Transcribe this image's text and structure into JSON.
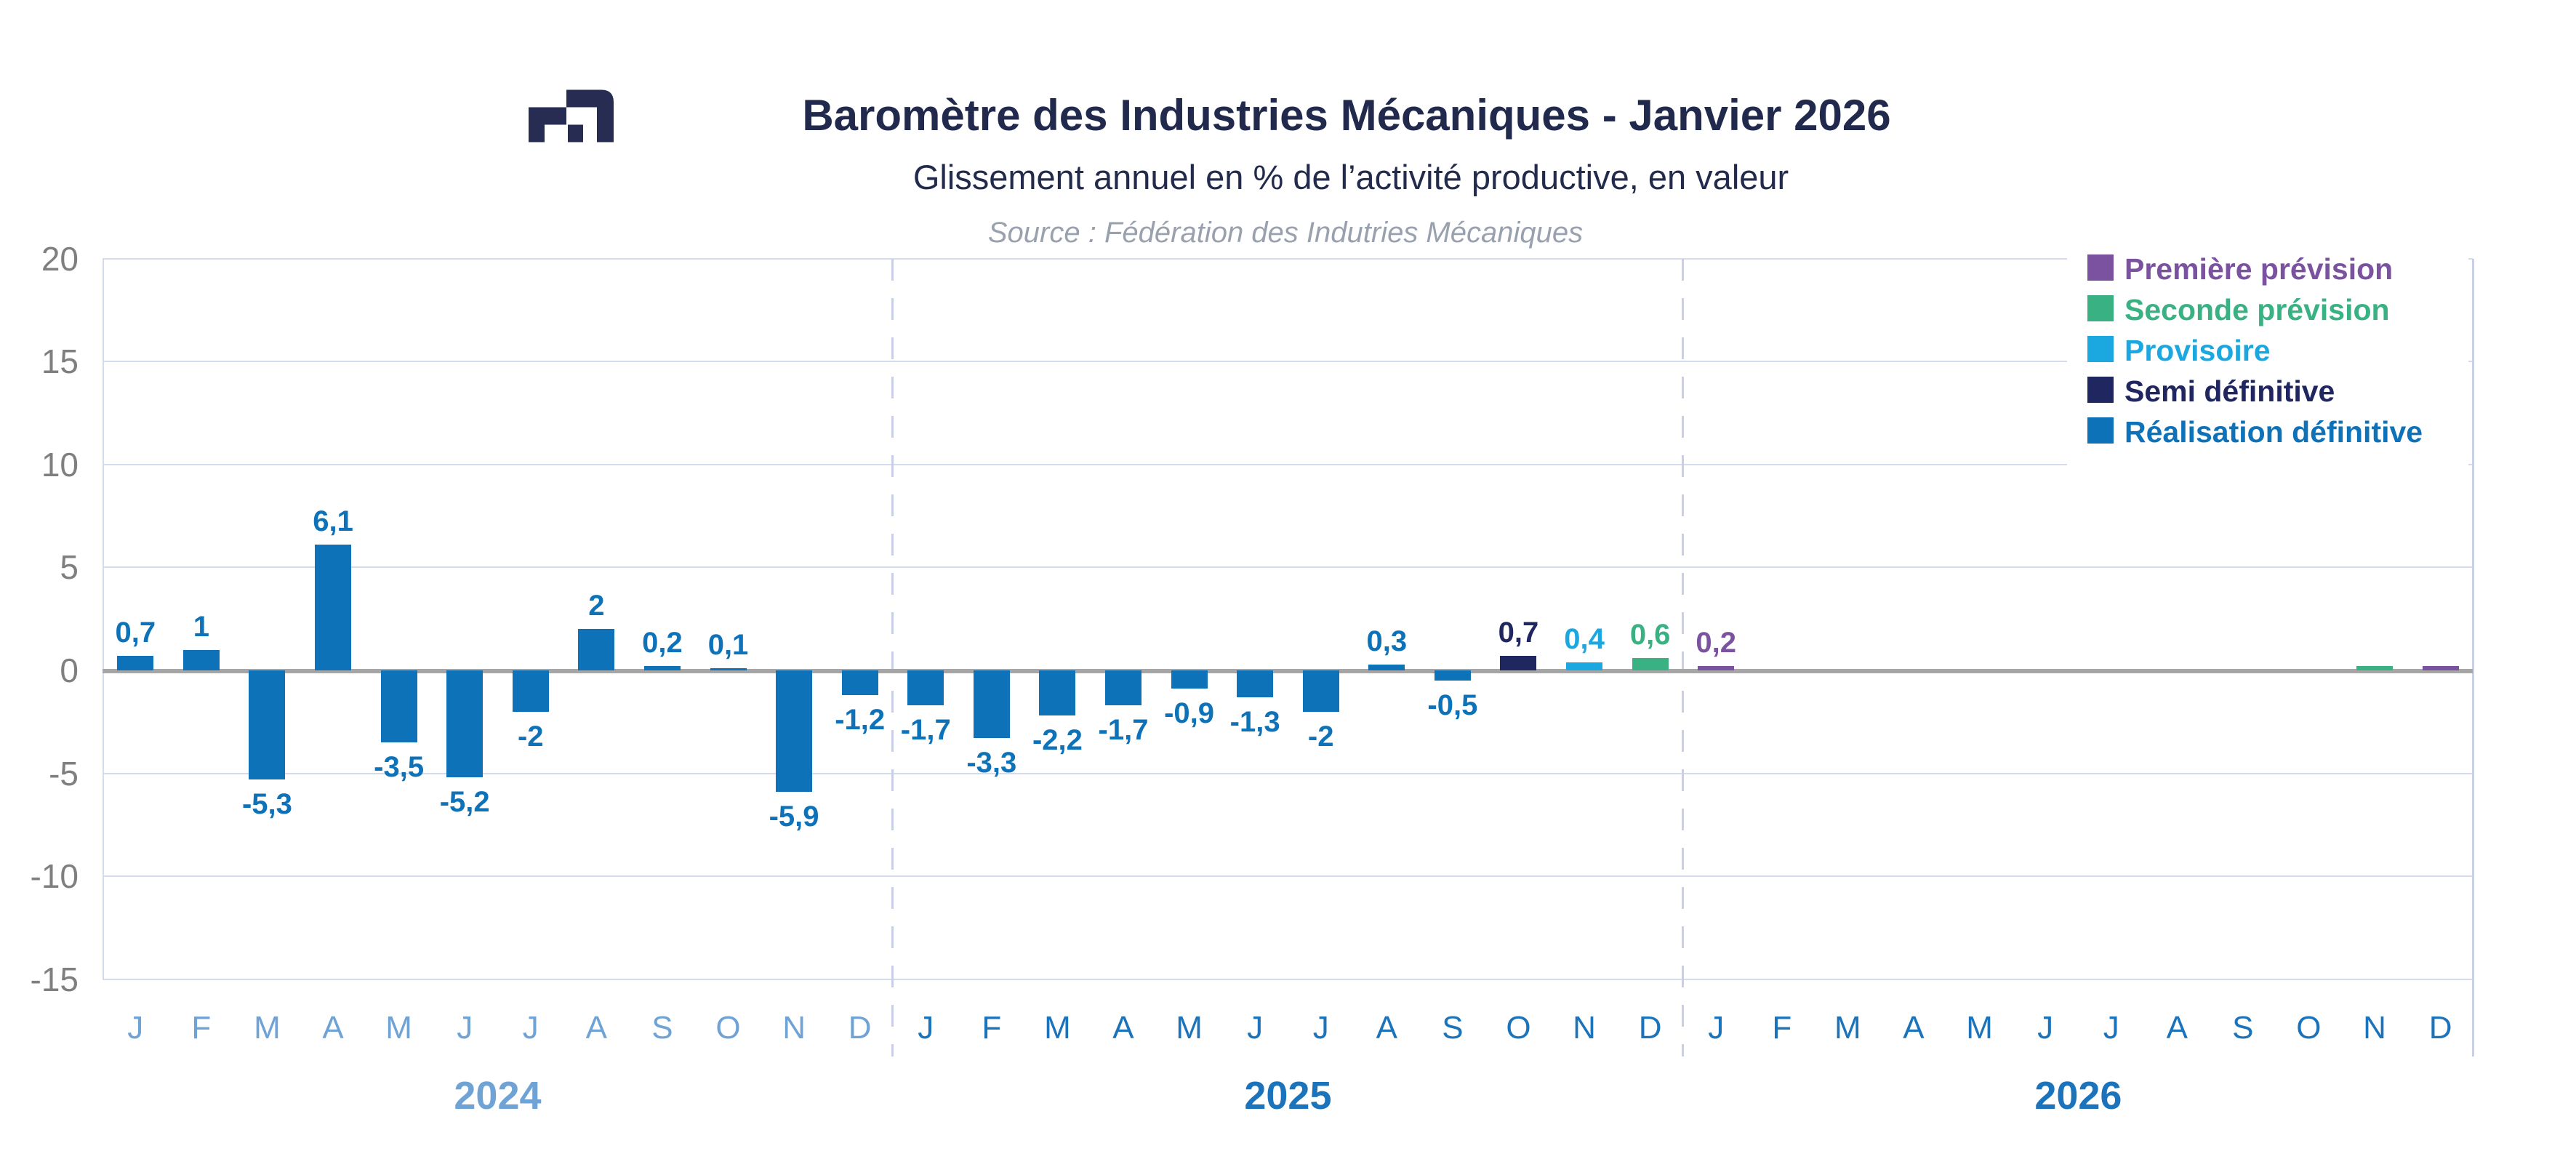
{
  "header": {
    "title": "Baromètre des Industries Mécaniques - Janvier 2026",
    "subtitle": "Glissement annuel en % de l’activité productive, en valeur",
    "source": "Source : Fédération des Indutries Mécaniques",
    "title_color": "#212A4C"
  },
  "logo": {
    "description": "fim-mark",
    "color": "#262C52"
  },
  "legend": {
    "items": [
      {
        "key": "premiere",
        "label": "Première prévision",
        "color": "#7B52A0"
      },
      {
        "key": "seconde",
        "label": "Seconde prévision",
        "color": "#3AB183"
      },
      {
        "key": "provisoire",
        "label": "Provisoire",
        "color": "#1BA8E0"
      },
      {
        "key": "semi",
        "label": "Semi définitive",
        "color": "#20265F"
      },
      {
        "key": "realisation",
        "label": "Réalisation définitive",
        "color": "#0E72B8"
      }
    ]
  },
  "chart_data": {
    "type": "bar",
    "title": "Baromètre des Industries Mécaniques - Janvier 2026",
    "subtitle": "Glissement annuel en % de l’activité productive, en valeur",
    "xlabel": "",
    "ylabel": "Glissement annuel en %",
    "ylim": [
      -15,
      20
    ],
    "grid_step": 5,
    "grid_on": true,
    "legend_position": "top-right-inside",
    "y_ticks": [
      20,
      15,
      10,
      5,
      0,
      -5,
      -10,
      -15
    ],
    "axis_color": "#A6A6A6",
    "gridline_color": "#D5DBEC",
    "separator_color": "#C9CFE6",
    "tick_label_color": "#7F7F7F",
    "years": [
      {
        "label": "2024",
        "color": "#6FA3D6",
        "month_color": "#6FA3D6"
      },
      {
        "label": "2025",
        "color": "#1B74BB",
        "month_color": "#1B74BB"
      },
      {
        "label": "2026",
        "color": "#1B74BB",
        "month_color": "#1B74BB"
      }
    ],
    "month_letters": [
      "J",
      "F",
      "M",
      "A",
      "M",
      "J",
      "J",
      "A",
      "S",
      "O",
      "N",
      "D"
    ],
    "points": [
      {
        "year": "2024",
        "month": "J",
        "value": 0.7,
        "label": "0,7",
        "series": "realisation"
      },
      {
        "year": "2024",
        "month": "F",
        "value": 1,
        "label": "1",
        "series": "realisation"
      },
      {
        "year": "2024",
        "month": "M",
        "value": -5.3,
        "label": "-5,3",
        "series": "realisation"
      },
      {
        "year": "2024",
        "month": "A",
        "value": 6.1,
        "label": "6,1",
        "series": "realisation"
      },
      {
        "year": "2024",
        "month": "M",
        "value": -3.5,
        "label": "-3,5",
        "series": "realisation"
      },
      {
        "year": "2024",
        "month": "J",
        "value": -5.2,
        "label": "-5,2",
        "series": "realisation"
      },
      {
        "year": "2024",
        "month": "J",
        "value": -2,
        "label": "-2",
        "series": "realisation"
      },
      {
        "year": "2024",
        "month": "A",
        "value": 2,
        "label": "2",
        "series": "realisation"
      },
      {
        "year": "2024",
        "month": "S",
        "value": 0.2,
        "label": "0,2",
        "series": "realisation"
      },
      {
        "year": "2024",
        "month": "O",
        "value": 0.1,
        "label": "0,1",
        "series": "realisation"
      },
      {
        "year": "2024",
        "month": "N",
        "value": -5.9,
        "label": "-5,9",
        "series": "realisation"
      },
      {
        "year": "2024",
        "month": "D",
        "value": -1.2,
        "label": "-1,2",
        "series": "realisation"
      },
      {
        "year": "2025",
        "month": "J",
        "value": -1.7,
        "label": "-1,7",
        "series": "realisation"
      },
      {
        "year": "2025",
        "month": "F",
        "value": -3.3,
        "label": "-3,3",
        "series": "realisation"
      },
      {
        "year": "2025",
        "month": "M",
        "value": -2.2,
        "label": "-2,2",
        "series": "realisation"
      },
      {
        "year": "2025",
        "month": "A",
        "value": -1.7,
        "label": "-1,7",
        "series": "realisation"
      },
      {
        "year": "2025",
        "month": "M",
        "value": -0.9,
        "label": "-0,9",
        "series": "realisation"
      },
      {
        "year": "2025",
        "month": "J",
        "value": -1.3,
        "label": "-1,3",
        "series": "realisation"
      },
      {
        "year": "2025",
        "month": "J",
        "value": -2,
        "label": "-2",
        "series": "realisation"
      },
      {
        "year": "2025",
        "month": "A",
        "value": 0.3,
        "label": "0,3",
        "series": "realisation"
      },
      {
        "year": "2025",
        "month": "S",
        "value": -0.5,
        "label": "-0,5",
        "series": "realisation"
      },
      {
        "year": "2025",
        "month": "O",
        "value": 0.7,
        "label": "0,7",
        "series": "semi"
      },
      {
        "year": "2025",
        "month": "N",
        "value": 0.4,
        "label": "0,4",
        "series": "provisoire"
      },
      {
        "year": "2025",
        "month": "D",
        "value": 0.6,
        "label": "0,6",
        "series": "seconde"
      },
      {
        "year": "2026",
        "month": "J",
        "value": 0.2,
        "label": "0,2",
        "series": "premiere"
      },
      {
        "year": "2026",
        "month": "F",
        "value": null,
        "label": "",
        "series": null
      },
      {
        "year": "2026",
        "month": "M",
        "value": null,
        "label": "",
        "series": null
      },
      {
        "year": "2026",
        "month": "A",
        "value": null,
        "label": "",
        "series": null
      },
      {
        "year": "2026",
        "month": "M",
        "value": null,
        "label": "",
        "series": null
      },
      {
        "year": "2026",
        "month": "J",
        "value": null,
        "label": "",
        "series": null
      },
      {
        "year": "2026",
        "month": "J",
        "value": null,
        "label": "",
        "series": null
      },
      {
        "year": "2026",
        "month": "A",
        "value": null,
        "label": "",
        "series": null
      },
      {
        "year": "2026",
        "month": "S",
        "value": null,
        "label": "",
        "series": null
      },
      {
        "year": "2026",
        "month": "O",
        "value": null,
        "label": "",
        "series": null
      },
      {
        "year": "2026",
        "month": "N",
        "value": 0,
        "label": "",
        "series": "seconde"
      },
      {
        "year": "2026",
        "month": "D",
        "value": 0,
        "label": "",
        "series": "premiere"
      }
    ]
  }
}
